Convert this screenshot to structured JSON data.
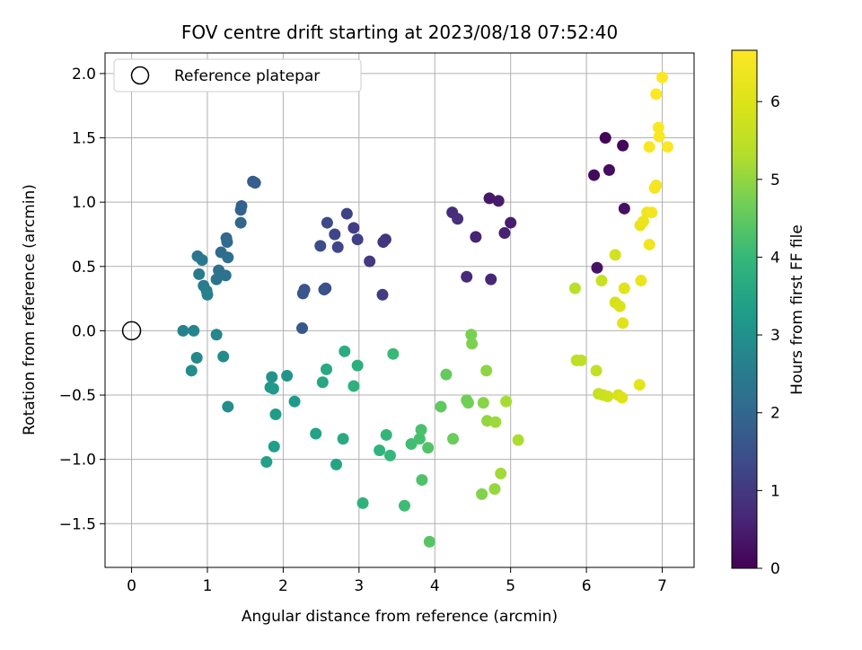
{
  "chart_data": {
    "type": "scatter",
    "title": "FOV centre drift starting at 2023/08/18 07:52:40",
    "xlabel": "Angular distance from reference (arcmin)",
    "ylabel": "Rotation from reference (arcmin)",
    "xlim": [
      -0.35,
      7.42
    ],
    "ylim": [
      -1.84,
      2.16
    ],
    "grid": true,
    "legend": {
      "location": "upper-left",
      "entries": [
        "Reference platepar"
      ]
    },
    "x_ticks": [
      0,
      1,
      2,
      3,
      4,
      5,
      6,
      7
    ],
    "y_ticks": [
      -1.5,
      -1.0,
      -0.5,
      0.0,
      0.5,
      1.0,
      1.5,
      2.0
    ],
    "colorbar": {
      "label": "Hours from first FF file",
      "colormap": "viridis",
      "range": [
        0,
        6.66
      ],
      "ticks": [
        0,
        1,
        2,
        3,
        4,
        5,
        6
      ]
    },
    "reference_point": {
      "x": 0,
      "y": 0,
      "label": "Reference platepar"
    },
    "points": [
      {
        "x": 6.25,
        "y": 1.5,
        "t": 0.05
      },
      {
        "x": 6.48,
        "y": 1.44,
        "t": 0.1
      },
      {
        "x": 6.1,
        "y": 1.21,
        "t": 0.15
      },
      {
        "x": 6.3,
        "y": 1.25,
        "t": 0.2
      },
      {
        "x": 6.5,
        "y": 0.95,
        "t": 0.25
      },
      {
        "x": 6.14,
        "y": 0.49,
        "t": 0.3
      },
      {
        "x": 4.72,
        "y": 1.03,
        "t": 0.4
      },
      {
        "x": 4.84,
        "y": 1.01,
        "t": 0.45
      },
      {
        "x": 5.0,
        "y": 0.84,
        "t": 0.5
      },
      {
        "x": 4.92,
        "y": 0.76,
        "t": 0.55
      },
      {
        "x": 4.54,
        "y": 0.73,
        "t": 0.6
      },
      {
        "x": 4.74,
        "y": 0.4,
        "t": 0.65
      },
      {
        "x": 4.42,
        "y": 0.42,
        "t": 0.7
      },
      {
        "x": 4.23,
        "y": 0.92,
        "t": 0.75
      },
      {
        "x": 4.3,
        "y": 0.87,
        "t": 0.8
      },
      {
        "x": 3.35,
        "y": 0.71,
        "t": 0.9
      },
      {
        "x": 3.32,
        "y": 0.69,
        "t": 0.95
      },
      {
        "x": 3.14,
        "y": 0.54,
        "t": 1.0
      },
      {
        "x": 3.31,
        "y": 0.28,
        "t": 1.05
      },
      {
        "x": 2.93,
        "y": 0.8,
        "t": 1.1
      },
      {
        "x": 2.98,
        "y": 0.71,
        "t": 1.15
      },
      {
        "x": 2.84,
        "y": 0.91,
        "t": 1.2
      },
      {
        "x": 2.68,
        "y": 0.75,
        "t": 1.25
      },
      {
        "x": 2.72,
        "y": 0.65,
        "t": 1.3
      },
      {
        "x": 2.58,
        "y": 0.84,
        "t": 1.35
      },
      {
        "x": 2.49,
        "y": 0.66,
        "t": 1.4
      },
      {
        "x": 2.56,
        "y": 0.33,
        "t": 1.45
      },
      {
        "x": 2.54,
        "y": 0.32,
        "t": 1.5
      },
      {
        "x": 2.28,
        "y": 0.32,
        "t": 1.55
      },
      {
        "x": 2.26,
        "y": 0.29,
        "t": 1.6
      },
      {
        "x": 2.25,
        "y": 0.02,
        "t": 1.65
      },
      {
        "x": 1.6,
        "y": 1.16,
        "t": 1.75
      },
      {
        "x": 1.63,
        "y": 1.15,
        "t": 1.8
      },
      {
        "x": 1.45,
        "y": 0.97,
        "t": 1.85
      },
      {
        "x": 1.44,
        "y": 0.94,
        "t": 1.9
      },
      {
        "x": 1.44,
        "y": 0.84,
        "t": 1.95
      },
      {
        "x": 1.25,
        "y": 0.72,
        "t": 2.0
      },
      {
        "x": 1.26,
        "y": 0.69,
        "t": 2.05
      },
      {
        "x": 1.18,
        "y": 0.61,
        "t": 2.1
      },
      {
        "x": 1.27,
        "y": 0.57,
        "t": 2.15
      },
      {
        "x": 1.15,
        "y": 0.47,
        "t": 2.2
      },
      {
        "x": 1.24,
        "y": 0.43,
        "t": 2.25
      },
      {
        "x": 1.12,
        "y": 0.4,
        "t": 2.3
      },
      {
        "x": 0.87,
        "y": 0.58,
        "t": 2.35
      },
      {
        "x": 0.93,
        "y": 0.55,
        "t": 2.4
      },
      {
        "x": 0.89,
        "y": 0.44,
        "t": 2.45
      },
      {
        "x": 0.95,
        "y": 0.35,
        "t": 2.5
      },
      {
        "x": 0.99,
        "y": 0.31,
        "t": 2.55
      },
      {
        "x": 1.0,
        "y": 0.28,
        "t": 2.6
      },
      {
        "x": 0.68,
        "y": 0.0,
        "t": 2.65
      },
      {
        "x": 0.82,
        "y": 0.0,
        "t": 2.7
      },
      {
        "x": 1.12,
        "y": -0.03,
        "t": 2.75
      },
      {
        "x": 0.86,
        "y": -0.21,
        "t": 2.8
      },
      {
        "x": 1.21,
        "y": -0.2,
        "t": 2.85
      },
      {
        "x": 0.79,
        "y": -0.31,
        "t": 2.9
      },
      {
        "x": 1.27,
        "y": -0.59,
        "t": 2.95
      },
      {
        "x": 1.85,
        "y": -0.36,
        "t": 3.05
      },
      {
        "x": 2.05,
        "y": -0.35,
        "t": 3.1
      },
      {
        "x": 1.83,
        "y": -0.44,
        "t": 3.15
      },
      {
        "x": 1.87,
        "y": -0.45,
        "t": 3.2
      },
      {
        "x": 2.15,
        "y": -0.55,
        "t": 3.25
      },
      {
        "x": 1.9,
        "y": -0.65,
        "t": 3.3
      },
      {
        "x": 1.88,
        "y": -0.9,
        "t": 3.35
      },
      {
        "x": 1.78,
        "y": -1.02,
        "t": 3.4
      },
      {
        "x": 2.43,
        "y": -0.8,
        "t": 3.45
      },
      {
        "x": 2.7,
        "y": -1.04,
        "t": 3.5
      },
      {
        "x": 2.52,
        "y": -0.4,
        "t": 3.55
      },
      {
        "x": 2.57,
        "y": -0.3,
        "t": 3.6
      },
      {
        "x": 2.79,
        "y": -0.84,
        "t": 3.65
      },
      {
        "x": 2.81,
        "y": -0.16,
        "t": 3.7
      },
      {
        "x": 2.98,
        "y": -0.27,
        "t": 3.75
      },
      {
        "x": 2.93,
        "y": -0.43,
        "t": 3.8
      },
      {
        "x": 3.05,
        "y": -1.34,
        "t": 3.85
      },
      {
        "x": 3.27,
        "y": -0.93,
        "t": 3.9
      },
      {
        "x": 3.36,
        "y": -0.81,
        "t": 3.95
      },
      {
        "x": 3.41,
        "y": -0.97,
        "t": 4.0
      },
      {
        "x": 3.45,
        "y": -0.18,
        "t": 4.05
      },
      {
        "x": 3.6,
        "y": -1.36,
        "t": 4.1
      },
      {
        "x": 3.69,
        "y": -0.88,
        "t": 4.15
      },
      {
        "x": 3.8,
        "y": -0.84,
        "t": 4.2
      },
      {
        "x": 3.82,
        "y": -0.77,
        "t": 4.25
      },
      {
        "x": 3.83,
        "y": -1.16,
        "t": 4.3
      },
      {
        "x": 3.91,
        "y": -0.91,
        "t": 4.35
      },
      {
        "x": 3.93,
        "y": -1.64,
        "t": 4.4
      },
      {
        "x": 4.08,
        "y": -0.59,
        "t": 4.5
      },
      {
        "x": 4.15,
        "y": -0.34,
        "t": 4.55
      },
      {
        "x": 4.24,
        "y": -0.84,
        "t": 4.6
      },
      {
        "x": 4.42,
        "y": -0.54,
        "t": 4.65
      },
      {
        "x": 4.44,
        "y": -0.56,
        "t": 4.7
      },
      {
        "x": 4.48,
        "y": -0.03,
        "t": 4.75
      },
      {
        "x": 4.49,
        "y": -0.1,
        "t": 4.8
      },
      {
        "x": 4.62,
        "y": -1.27,
        "t": 4.85
      },
      {
        "x": 4.64,
        "y": -0.56,
        "t": 4.9
      },
      {
        "x": 4.68,
        "y": -0.31,
        "t": 4.95
      },
      {
        "x": 4.69,
        "y": -0.7,
        "t": 5.0
      },
      {
        "x": 4.79,
        "y": -1.23,
        "t": 5.05
      },
      {
        "x": 4.8,
        "y": -0.71,
        "t": 5.1
      },
      {
        "x": 4.87,
        "y": -1.11,
        "t": 5.15
      },
      {
        "x": 4.94,
        "y": -0.55,
        "t": 5.2
      },
      {
        "x": 5.1,
        "y": -0.85,
        "t": 5.25
      },
      {
        "x": 5.85,
        "y": 0.33,
        "t": 5.4
      },
      {
        "x": 5.87,
        "y": -0.23,
        "t": 5.45
      },
      {
        "x": 5.93,
        "y": -0.23,
        "t": 5.5
      },
      {
        "x": 6.13,
        "y": -0.31,
        "t": 5.55
      },
      {
        "x": 6.16,
        "y": -0.49,
        "t": 5.6
      },
      {
        "x": 6.2,
        "y": 0.39,
        "t": 5.65
      },
      {
        "x": 6.22,
        "y": -0.5,
        "t": 5.7
      },
      {
        "x": 6.28,
        "y": -0.51,
        "t": 5.75
      },
      {
        "x": 6.38,
        "y": 0.59,
        "t": 5.8
      },
      {
        "x": 6.38,
        "y": 0.22,
        "t": 5.85
      },
      {
        "x": 6.42,
        "y": -0.5,
        "t": 5.9
      },
      {
        "x": 6.44,
        "y": 0.19,
        "t": 5.95
      },
      {
        "x": 6.47,
        "y": -0.52,
        "t": 6.0
      },
      {
        "x": 6.48,
        "y": 0.06,
        "t": 6.05
      },
      {
        "x": 6.5,
        "y": 0.33,
        "t": 6.1
      },
      {
        "x": 6.7,
        "y": -0.42,
        "t": 6.15
      },
      {
        "x": 6.71,
        "y": 0.82,
        "t": 6.2
      },
      {
        "x": 6.72,
        "y": 0.39,
        "t": 6.25
      },
      {
        "x": 6.75,
        "y": 0.85,
        "t": 6.3
      },
      {
        "x": 6.8,
        "y": 0.92,
        "t": 6.35
      },
      {
        "x": 6.83,
        "y": 0.67,
        "t": 6.4
      },
      {
        "x": 6.86,
        "y": 0.92,
        "t": 6.45
      },
      {
        "x": 6.9,
        "y": 1.11,
        "t": 6.5
      },
      {
        "x": 6.92,
        "y": 1.13,
        "t": 6.52
      },
      {
        "x": 6.83,
        "y": 1.43,
        "t": 6.55
      },
      {
        "x": 6.96,
        "y": 1.51,
        "t": 6.58
      },
      {
        "x": 6.95,
        "y": 1.58,
        "t": 6.6
      },
      {
        "x": 6.92,
        "y": 1.84,
        "t": 6.62
      },
      {
        "x": 7.07,
        "y": 1.43,
        "t": 6.64
      },
      {
        "x": 7.0,
        "y": 1.97,
        "t": 6.66
      }
    ]
  }
}
